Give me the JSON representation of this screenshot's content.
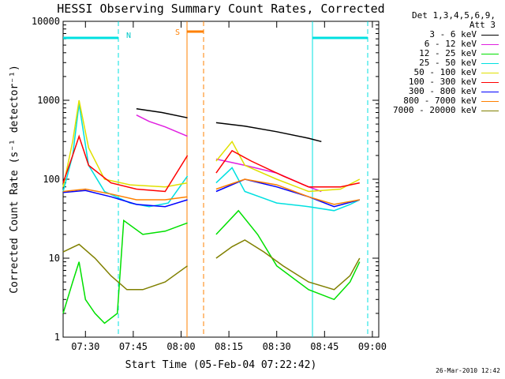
{
  "chart_data": {
    "type": "line",
    "title": "HESSI Observing Summary Count Rates, Corrected",
    "xlabel": "Start Time (05-Feb-04 07:22:42)",
    "ylabel": "Corrected Count Rate (s⁻¹ detector⁻¹)",
    "yscale": "log",
    "ylim": [
      1,
      10000
    ],
    "xlim_minutes": [
      25,
      62
    ],
    "x_ticks": [
      {
        "min": 30,
        "label": "07:30"
      },
      {
        "min": 45,
        "label": "07:45"
      },
      {
        "min": 60,
        "label": "08:00"
      },
      {
        "min": 75,
        "label": "08:15"
      },
      {
        "min": 90,
        "label": "08:30"
      },
      {
        "min": 105,
        "label": "08:45"
      },
      {
        "min": 120,
        "label": "09:00"
      }
    ],
    "y_ticks": [
      {
        "v": 1,
        "label": "1"
      },
      {
        "v": 10,
        "label": "10"
      },
      {
        "v": 100,
        "label": "100"
      },
      {
        "v": 1000,
        "label": "1000"
      },
      {
        "v": 10000,
        "label": "10000"
      }
    ],
    "annotations": {
      "night_label": "N",
      "saa_label": "S"
    },
    "legend_header": [
      "Det 1,3,4,5,6,9,",
      "Att 3"
    ],
    "series": [
      {
        "name": "3 - 6 keV",
        "color": "#000000",
        "points": [
          [
            46,
            780
          ],
          [
            54,
            700
          ],
          [
            62,
            600
          ],
          [
            71,
            520
          ],
          [
            80,
            470
          ],
          [
            90,
            400
          ],
          [
            100,
            330
          ],
          [
            104,
            300
          ]
        ]
      },
      {
        "name": "6 - 12 keV",
        "color": "#e020e0",
        "points": [
          [
            46,
            650
          ],
          [
            50,
            540
          ],
          [
            55,
            460
          ],
          [
            62,
            350
          ],
          [
            71,
            180
          ],
          [
            80,
            150
          ],
          [
            90,
            120
          ],
          [
            100,
            80
          ],
          [
            104,
            70
          ]
        ]
      },
      {
        "name": "12 - 25 keV",
        "color": "#00e000",
        "points": [
          [
            23,
            2
          ],
          [
            26,
            5
          ],
          [
            28,
            9
          ],
          [
            30,
            3
          ],
          [
            33,
            2
          ],
          [
            36,
            1.5
          ],
          [
            40,
            2
          ],
          [
            42,
            30
          ],
          [
            48,
            20
          ],
          [
            55,
            22
          ],
          [
            62,
            28
          ],
          [
            71,
            20
          ],
          [
            78,
            40
          ],
          [
            84,
            20
          ],
          [
            90,
            8
          ],
          [
            100,
            4
          ],
          [
            108,
            3
          ],
          [
            113,
            5
          ],
          [
            116,
            9
          ]
        ]
      },
      {
        "name": "25 - 50 keV",
        "color": "#00e0e0",
        "points": [
          [
            23,
            70
          ],
          [
            26,
            200
          ],
          [
            28,
            900
          ],
          [
            31,
            150
          ],
          [
            36,
            70
          ],
          [
            44,
            50
          ],
          [
            50,
            45
          ],
          [
            56,
            50
          ],
          [
            62,
            110
          ],
          [
            71,
            90
          ],
          [
            76,
            140
          ],
          [
            80,
            70
          ],
          [
            90,
            50
          ],
          [
            100,
            45
          ],
          [
            108,
            40
          ],
          [
            113,
            48
          ],
          [
            116,
            55
          ]
        ]
      },
      {
        "name": "50 - 100 keV",
        "color": "#e0e000",
        "points": [
          [
            23,
            80
          ],
          [
            26,
            300
          ],
          [
            28,
            1000
          ],
          [
            31,
            250
          ],
          [
            36,
            100
          ],
          [
            44,
            85
          ],
          [
            55,
            80
          ],
          [
            62,
            90
          ],
          [
            71,
            170
          ],
          [
            76,
            300
          ],
          [
            80,
            150
          ],
          [
            90,
            100
          ],
          [
            100,
            70
          ],
          [
            110,
            75
          ],
          [
            116,
            100
          ]
        ]
      },
      {
        "name": "100 - 300 keV",
        "color": "#ff0000",
        "points": [
          [
            23,
            90
          ],
          [
            26,
            200
          ],
          [
            28,
            350
          ],
          [
            31,
            150
          ],
          [
            38,
            90
          ],
          [
            46,
            75
          ],
          [
            55,
            70
          ],
          [
            62,
            200
          ],
          [
            71,
            120
          ],
          [
            76,
            230
          ],
          [
            82,
            170
          ],
          [
            92,
            110
          ],
          [
            100,
            80
          ],
          [
            110,
            80
          ],
          [
            116,
            90
          ]
        ]
      },
      {
        "name": "300 - 800 keV",
        "color": "#0000ff",
        "points": [
          [
            23,
            68
          ],
          [
            30,
            72
          ],
          [
            38,
            60
          ],
          [
            46,
            48
          ],
          [
            55,
            45
          ],
          [
            62,
            55
          ],
          [
            71,
            70
          ],
          [
            80,
            100
          ],
          [
            90,
            80
          ],
          [
            100,
            60
          ],
          [
            108,
            45
          ],
          [
            116,
            55
          ]
        ]
      },
      {
        "name": "800 - 7000 keV",
        "color": "#ff8000",
        "points": [
          [
            23,
            70
          ],
          [
            30,
            75
          ],
          [
            38,
            65
          ],
          [
            46,
            55
          ],
          [
            55,
            55
          ],
          [
            62,
            60
          ],
          [
            71,
            75
          ],
          [
            80,
            100
          ],
          [
            90,
            85
          ],
          [
            100,
            60
          ],
          [
            108,
            48
          ],
          [
            116,
            55
          ]
        ]
      },
      {
        "name": "7000 - 20000 keV",
        "color": "#808000",
        "points": [
          [
            23,
            12
          ],
          [
            28,
            15
          ],
          [
            33,
            10
          ],
          [
            38,
            6
          ],
          [
            43,
            4
          ],
          [
            48,
            4
          ],
          [
            55,
            5
          ],
          [
            62,
            8
          ],
          [
            71,
            10
          ],
          [
            76,
            14
          ],
          [
            80,
            17
          ],
          [
            86,
            12
          ],
          [
            92,
            8
          ],
          [
            100,
            5
          ],
          [
            108,
            4
          ],
          [
            113,
            6
          ],
          [
            116,
            10
          ]
        ]
      }
    ]
  },
  "footer": {
    "date": "26-Mar-2010 12:42"
  }
}
